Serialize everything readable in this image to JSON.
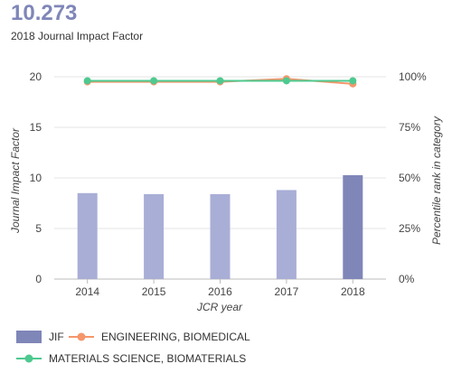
{
  "header": {
    "value": "10.273",
    "caption": "2018 Journal Impact Factor"
  },
  "chart_data": {
    "type": "bar",
    "categories": [
      "2014",
      "2015",
      "2016",
      "2017",
      "2018"
    ],
    "title": "",
    "xlabel": "JCR year",
    "ylabel": "Journal Impact Factor",
    "y2label": "Percentile rank in category",
    "ylim": [
      0,
      20
    ],
    "y2lim": [
      0,
      100
    ],
    "yticks": [
      "0",
      "5",
      "10",
      "15",
      "20"
    ],
    "y2ticks": [
      "0%",
      "25%",
      "50%",
      "75%",
      "100%"
    ],
    "grid": true,
    "legend_position": "bottom-left",
    "bar_series": {
      "name": "JIF",
      "values": [
        8.5,
        8.4,
        8.4,
        8.8,
        10.273
      ],
      "color": "#a9aed6",
      "highlight_color": "#7f86b8"
    },
    "line_series": [
      {
        "name": "ENGINEERING, BIOMEDICAL",
        "values": [
          97.5,
          97.5,
          97.5,
          99.0,
          96.5
        ],
        "color": "#f5966b"
      },
      {
        "name": "MATERIALS SCIENCE, BIOMATERIALS",
        "values": [
          98.0,
          98.0,
          98.0,
          98.0,
          98.0
        ],
        "color": "#4ec98f"
      }
    ]
  }
}
